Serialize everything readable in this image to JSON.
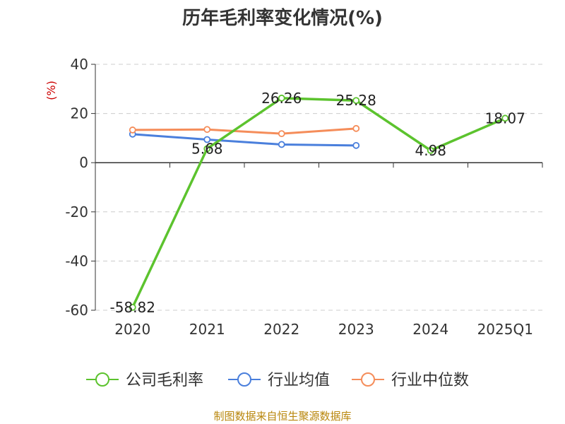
{
  "chart_data": {
    "type": "line",
    "title": "历年毛利率变化情况(%)",
    "ylabel": "(%)",
    "categories": [
      "2020",
      "2021",
      "2022",
      "2023",
      "2024",
      "2025Q1"
    ],
    "y_ticks": [
      "40",
      "20",
      "0",
      "-20",
      "-40",
      "-60"
    ],
    "ylim": [
      -60,
      40
    ],
    "grid": true,
    "legend_position": "bottom",
    "series": [
      {
        "name": "公司毛利率",
        "color": "#5cc32e",
        "values": [
          -58.82,
          5.68,
          26.26,
          25.28,
          4.98,
          18.07
        ],
        "labels": [
          "-58.82",
          "5.68",
          "26.26",
          "25.28",
          "4.98",
          "18.07"
        ]
      },
      {
        "name": "行业均值",
        "color": "#4a7fdc",
        "values": [
          11.6,
          9.4,
          7.4,
          7.0,
          null,
          null
        ]
      },
      {
        "name": "行业中位数",
        "color": "#f58d5a",
        "values": [
          13.3,
          13.5,
          11.8,
          13.9,
          null,
          null
        ]
      }
    ],
    "source": "制图数据来自恒生聚源数据库"
  }
}
